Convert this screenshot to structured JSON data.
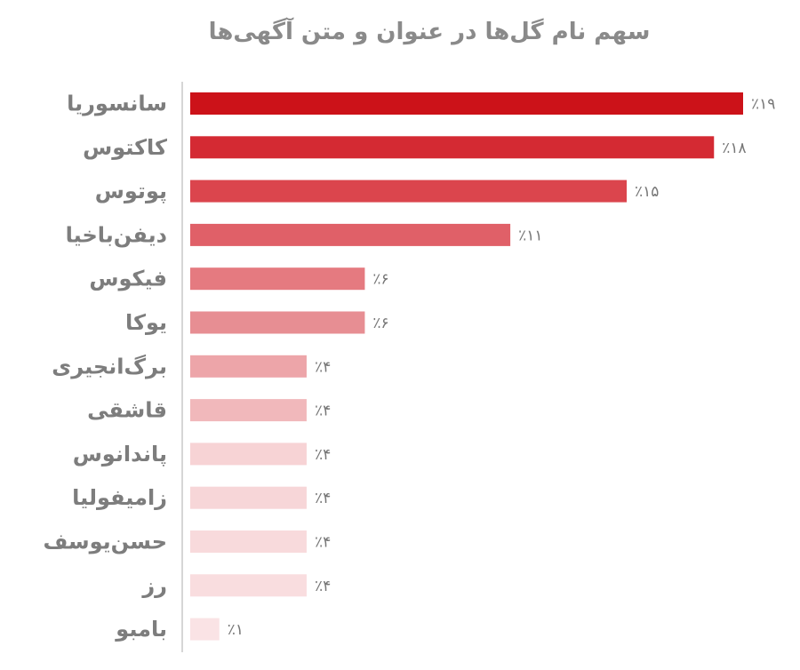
{
  "chart_data": {
    "type": "bar",
    "orientation": "horizontal",
    "title": "سهم نام گل‌ها در عنوان و متن آگهی‌ها",
    "categories": [
      "سانسوریا",
      "کاکتوس",
      "پوتوس",
      "دیفن‌باخیا",
      "فیکوس",
      "یوکا",
      "برگ‌انجیری",
      "قاشقی",
      "پاندانوس",
      "زامیفولیا",
      "حسن‌یوسف",
      "رز",
      "بامبو"
    ],
    "values": [
      19,
      18,
      15,
      11,
      6,
      6,
      4,
      4,
      4,
      4,
      4,
      4,
      1
    ],
    "value_labels": [
      "٪۱۹",
      "٪۱۸",
      "٪۱۵",
      "٪۱۱",
      "٪۶",
      "٪۶",
      "٪۴",
      "٪۴",
      "٪۴",
      "٪۴",
      "٪۴",
      "٪۴",
      "٪۱"
    ],
    "colors": [
      "#cc1219",
      "#d42a33",
      "#db454d",
      "#e06068",
      "#e57a80",
      "#e78e93",
      "#eda5a9",
      "#f1b8bb",
      "#f7d3d5",
      "#f7d6d8",
      "#f8dadc",
      "#f9dddf",
      "#fae3e5"
    ],
    "xlim": [
      0,
      19
    ],
    "grid": false,
    "legend": "none"
  }
}
